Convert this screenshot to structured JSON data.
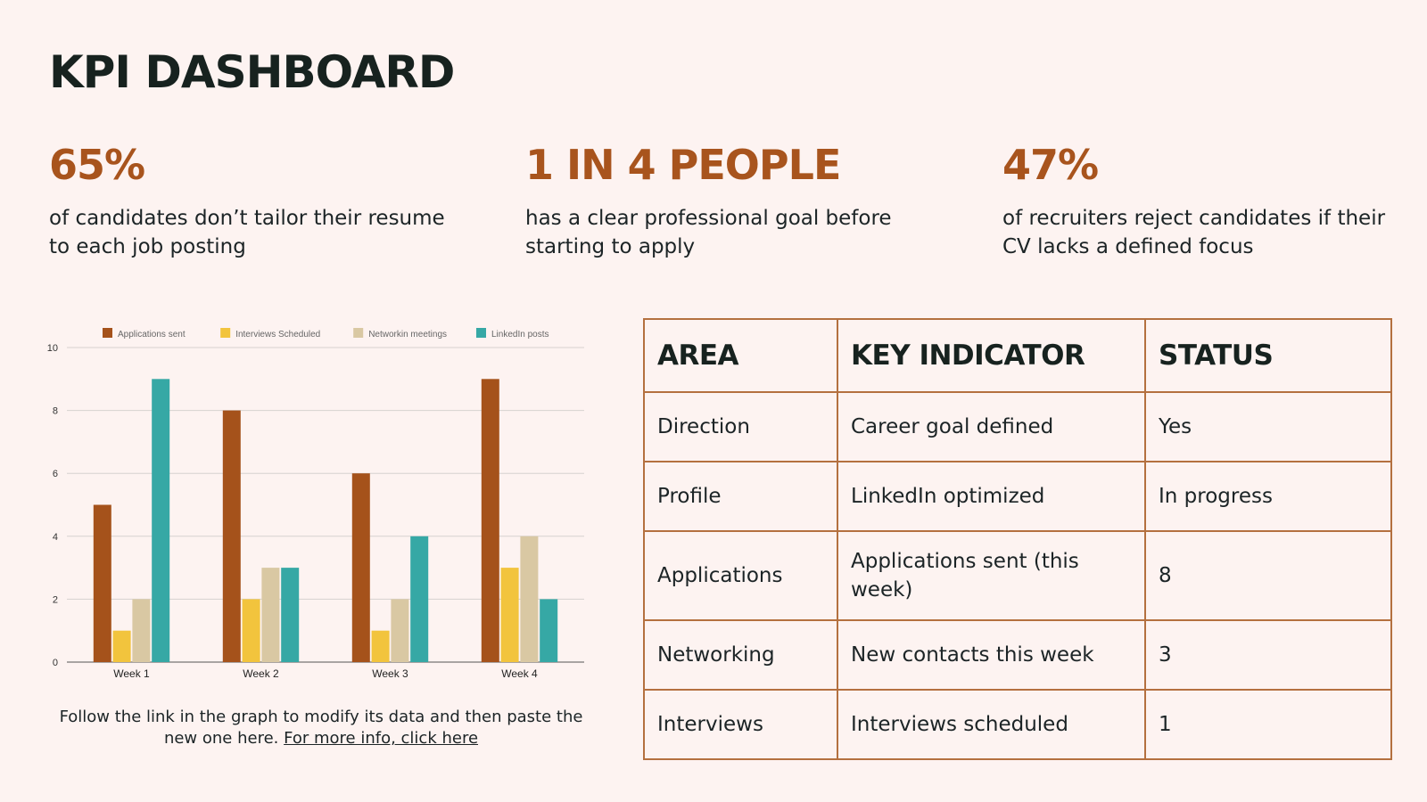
{
  "title": "KPI DASHBOARD",
  "stats": [
    {
      "value": "65%",
      "text": "of candidates don’t tailor their resume to each job posting"
    },
    {
      "value": "1 IN 4 PEOPLE",
      "text": "has a clear professional goal before starting to apply"
    },
    {
      "value": "47%",
      "text": "of recruiters reject candidates if their CV lacks a defined focus"
    }
  ],
  "chart_data": {
    "type": "bar",
    "categories": [
      "Week 1",
      "Week 2",
      "Week 3",
      "Week 4"
    ],
    "series": [
      {
        "name": "Applications sent",
        "color": "#a5521b",
        "values": [
          5,
          8,
          6,
          9
        ]
      },
      {
        "name": "Interviews Scheduled",
        "color": "#f2c43d",
        "values": [
          1,
          2,
          1,
          3
        ]
      },
      {
        "name": "Networkin meetings",
        "color": "#d9c8a3",
        "values": [
          2,
          3,
          2,
          4
        ]
      },
      {
        "name": "LinkedIn posts",
        "color": "#36a8a5",
        "values": [
          9,
          3,
          4,
          2
        ]
      }
    ],
    "yticks": [
      "0",
      "2",
      "4",
      "6",
      "8",
      "10"
    ],
    "ylim": [
      0,
      10
    ],
    "grid": true,
    "legend": "top"
  },
  "caption": {
    "text": "Follow the link in the graph to modify its data and then paste the new one here.",
    "link": "For more info, click here"
  },
  "table": {
    "headers": [
      "AREA",
      "KEY INDICATOR",
      "STATUS"
    ],
    "rows": [
      {
        "area": "Direction",
        "indicator": "Career goal defined",
        "status": "Yes"
      },
      {
        "area": "Profile",
        "indicator": "LinkedIn optimized",
        "status": "In progress"
      },
      {
        "area": "Applications",
        "indicator": "Applications sent (this week)",
        "status": "8"
      },
      {
        "area": "Networking",
        "indicator": "New contacts this week",
        "status": "3"
      },
      {
        "area": "Interviews",
        "indicator": "Interviews scheduled",
        "status": "1"
      }
    ]
  },
  "colors": {
    "accent": "#a8541d",
    "background": "#fdf3f1",
    "border": "#b4703f"
  }
}
